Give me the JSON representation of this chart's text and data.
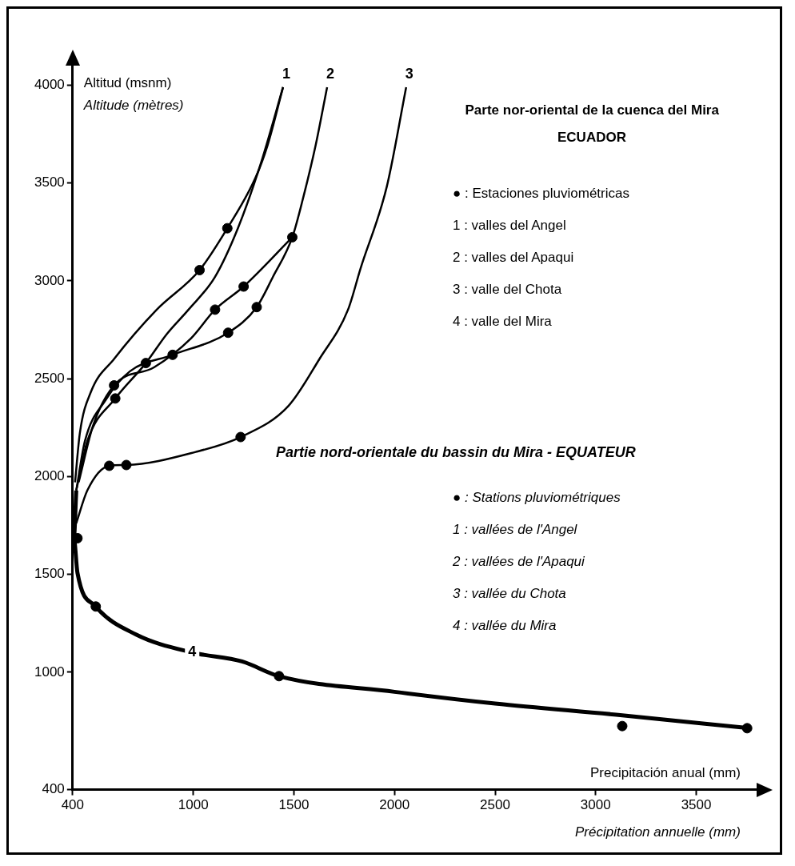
{
  "chart_data": {
    "type": "line",
    "title": "Parte nor-oriental de la cuenca del Mira",
    "subtitle": "Partie nord-orientale du bassin du Mira - EQUATEUR",
    "xlabel": "Precipitación anual (mm)",
    "ylabel": "Altitud (msnm)",
    "annotations": [
      "Altitude (mètres)",
      "ECUADOR",
      "● : Estaciones pluviométricas",
      "1 : valles del Angel",
      "2 : valles del Apaqui",
      "3 : valle del Chota",
      "4 : valle del Mira",
      "● : Stations pluviométriques",
      "1 : vallées de l'Angel",
      "2 : vallées de l'Apaqui",
      "3 : vallée du Chota",
      "4 : vallée du Mira",
      "Précipitation annuelle (mm)"
    ],
    "xlim": [
      400,
      3800
    ],
    "xticks": [
      400,
      1000,
      1500,
      2000,
      2500,
      3000,
      3500
    ],
    "ylim": [
      400,
      4100
    ],
    "yticks": [
      400,
      1000,
      1500,
      2000,
      2500,
      3000,
      3500,
      4000
    ],
    "grid": false,
    "legend": false,
    "line_style": "solid",
    "series": [
      {
        "name": "1",
        "color": "#000000",
        "marker": "none",
        "x": [
          1446,
          1369,
          1308,
          1169,
          1031,
          818,
          606,
          491,
          436,
          412
        ],
        "values": [
          3990,
          3693,
          3525,
          3269,
          3055,
          2853,
          2601,
          2433,
          2223,
          1971
        ]
      },
      {
        "color": "#000000",
        "marker": "none",
        "x": [
          1446,
          1338,
          1223,
          1108,
          976,
          867,
          764,
          612,
          473,
          418
        ],
        "values": [
          3990,
          3609,
          3273,
          3021,
          2853,
          2727,
          2580,
          2399,
          2181,
          1929
        ]
      },
      {
        "name": "2",
        "color": "#000000",
        "marker": "none",
        "x": [
          1665,
          1608,
          1550,
          1492,
          1396,
          1315,
          1173,
          897,
          685,
          564,
          461,
          418
        ],
        "values": [
          3990,
          3693,
          3441,
          3223,
          3021,
          2866,
          2735,
          2622,
          2538,
          2391,
          2181,
          1929
        ]
      },
      {
        "color": "#000000",
        "marker": "none",
        "x": [
          1492,
          1250,
          1108,
          988,
          806,
          606,
          503,
          430
        ],
        "values": [
          3223,
          2971,
          2853,
          2706,
          2559,
          2466,
          2265,
          1971
        ]
      },
      {
        "name": "3",
        "color": "#000000",
        "marker": "none",
        "x": [
          2058,
          1962,
          1831,
          1769,
          1627,
          1473,
          1235,
          1012,
          667,
          582,
          473,
          418
        ],
        "values": [
          3990,
          3483,
          3063,
          2853,
          2601,
          2361,
          2202,
          2126,
          2059,
          2055,
          1929,
          1761
        ]
      },
      {
        "name": "4",
        "color": "#000000",
        "marker": "none",
        "x": [
          418,
          406,
          424,
          515,
          715,
          994,
          1242,
          1426,
          2000,
          2500,
          3132,
          3753
        ],
        "values": [
          1929,
          1685,
          1508,
          1336,
          1193,
          1101,
          1055,
          980,
          900,
          840,
          780,
          715
        ]
      },
      {
        "type": "scatter",
        "color": "#000000",
        "marker": "circle",
        "x": [
          1169,
          1031,
          1492,
          1250,
          1315,
          1108,
          1173,
          897,
          764,
          606,
          612,
          1235,
          582,
          667,
          424,
          515,
          1426,
          3132,
          3753
        ],
        "values": [
          3269,
          3055,
          3223,
          2971,
          2866,
          2853,
          2735,
          2622,
          2580,
          2466,
          2399,
          2202,
          2055,
          2059,
          1685,
          1336,
          980,
          725,
          714
        ]
      }
    ]
  }
}
